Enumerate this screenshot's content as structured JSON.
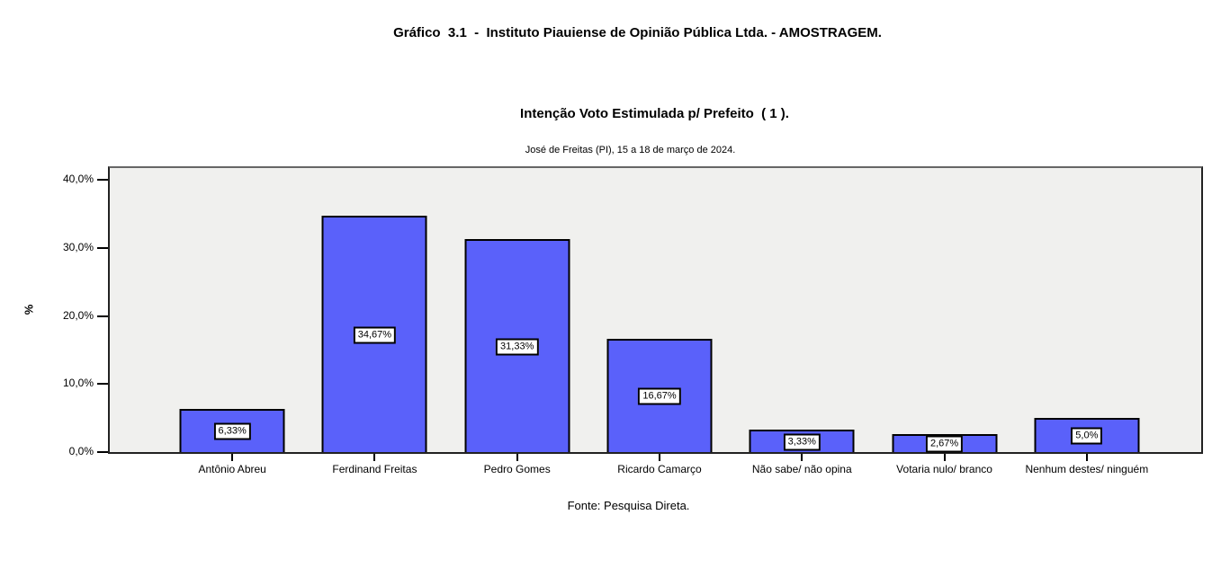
{
  "header": {
    "title": "Gráfico  3.1  -  Instituto Piauiense de Opinião Pública Ltda. - AMOSTRAGEM.",
    "subtitle": "Intenção Voto Estimulada p/ Prefeito  ( 1 ).",
    "date_line": "José de Freitas (PI), 15 a 18 de março de 2024."
  },
  "footer": {
    "source": "Fonte: Pesquisa Direta."
  },
  "chart_data": {
    "type": "bar",
    "title": "Intenção Voto Estimulada p/ Prefeito ( 1 ).",
    "subtitle": "José de Freitas (PI), 15 a 18 de março de 2024.",
    "categories": [
      "Antônio Abreu",
      "Ferdinand Freitas",
      "Pedro Gomes",
      "Ricardo Camarço",
      "Não sabe/ não opina",
      "Votaria nulo/ branco",
      "Nenhum destes/ ninguém"
    ],
    "values": [
      6.33,
      34.67,
      31.33,
      16.67,
      3.33,
      2.67,
      5.0
    ],
    "value_labels": [
      "6,33%",
      "34,67%",
      "31,33%",
      "16,67%",
      "3,33%",
      "2,67%",
      "5,0%"
    ],
    "xlabel": "",
    "ylabel": "%",
    "ylim": [
      0,
      42
    ],
    "y_ticks": [
      "0,0%",
      "10,0%",
      "20,0%",
      "30,0%",
      "40,0%"
    ],
    "y_tick_values": [
      0,
      10,
      20,
      30,
      40
    ],
    "grid": false,
    "legend": "none",
    "bar_color": "#5a61fa",
    "bar_border_color": "#000000",
    "plot_background": "#f0f0ee",
    "source_note": "Fonte: Pesquisa Direta."
  }
}
